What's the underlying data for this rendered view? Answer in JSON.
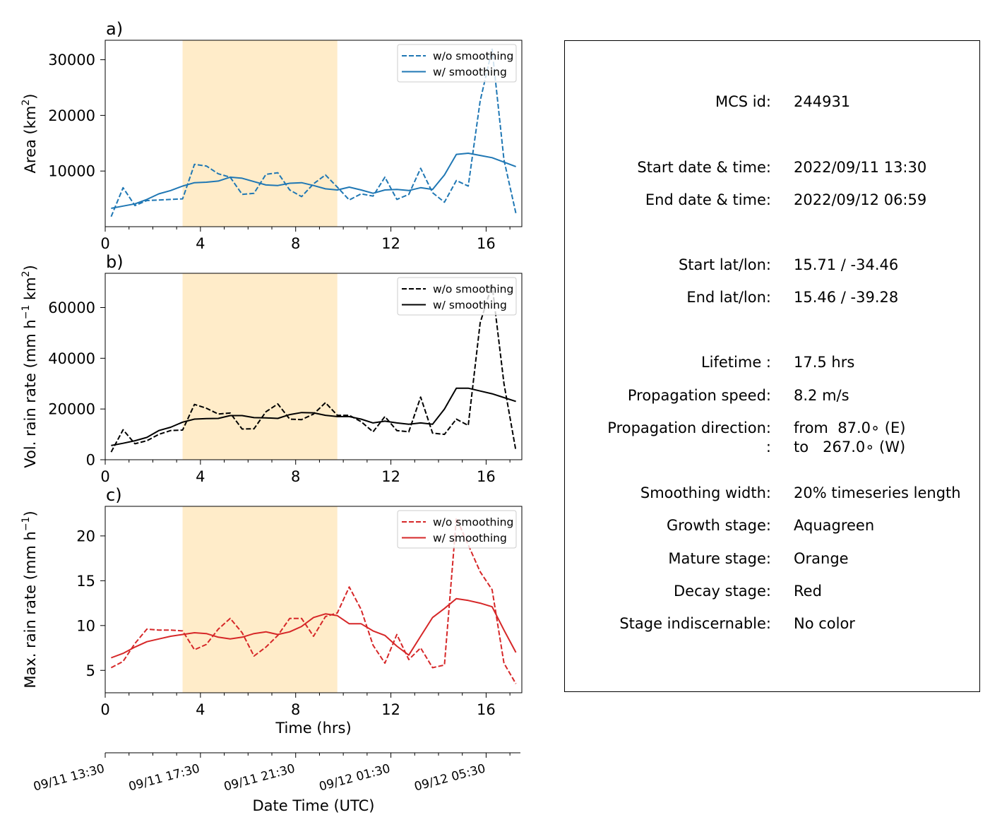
{
  "chart_data": [
    {
      "type": "line",
      "panel_label": "a)",
      "ylabel_main": "Area  (km",
      "ylabel_sup": "2",
      "ylabel_end": ")",
      "xlim": [
        0,
        17.5
      ],
      "ylim": [
        0,
        33500
      ],
      "yticks": [
        10000,
        20000,
        30000
      ],
      "xticks": [
        0,
        4,
        8,
        12,
        16
      ],
      "color": "#1f77b4",
      "shaded_span": [
        3.25,
        9.75
      ],
      "shade_color": "#ffecc9",
      "legend_placement": "top-right",
      "series": [
        {
          "name": "w/o smoothing",
          "style": "dashed",
          "x": [
            0.25,
            0.75,
            1.25,
            1.75,
            2.25,
            2.75,
            3.25,
            3.75,
            4.25,
            4.75,
            5.25,
            5.75,
            6.25,
            6.75,
            7.25,
            7.75,
            8.25,
            8.75,
            9.25,
            9.75,
            10.25,
            10.75,
            11.25,
            11.75,
            12.25,
            12.75,
            13.25,
            13.75,
            14.25,
            14.75,
            15.25,
            15.75,
            16.25,
            16.75,
            17.25
          ],
          "y": [
            1800,
            7000,
            3800,
            4700,
            4800,
            4900,
            5000,
            11200,
            10900,
            9500,
            8900,
            5800,
            6000,
            9400,
            9700,
            6600,
            5400,
            7700,
            9300,
            7100,
            4800,
            5900,
            5500,
            8900,
            4900,
            5800,
            10500,
            6100,
            4400,
            8300,
            7300,
            22600,
            31900,
            12000,
            2400
          ]
        },
        {
          "name": "w/ smoothing",
          "style": "solid",
          "x": [
            0.25,
            0.75,
            1.25,
            1.75,
            2.25,
            2.75,
            3.25,
            3.75,
            4.25,
            4.75,
            5.25,
            5.75,
            6.25,
            6.75,
            7.25,
            7.75,
            8.25,
            8.75,
            9.25,
            9.75,
            10.25,
            10.75,
            11.25,
            11.75,
            12.25,
            12.75,
            13.25,
            13.75,
            14.25,
            14.75,
            15.25,
            15.75,
            16.25,
            16.75,
            17.25
          ],
          "y": [
            3300,
            3700,
            4100,
            4900,
            5900,
            6500,
            7300,
            7900,
            8000,
            8200,
            8900,
            8700,
            8100,
            7500,
            7400,
            7800,
            7900,
            7400,
            6800,
            6600,
            7100,
            6600,
            6000,
            6600,
            6700,
            6500,
            7000,
            6700,
            9300,
            13000,
            13200,
            12800,
            12400,
            11600,
            10800
          ]
        }
      ]
    },
    {
      "type": "line",
      "panel_label": "b)",
      "ylabel_main": "Vol. rain rate (mm h",
      "ylabel_sup1": "−1",
      "ylabel_mid": " km",
      "ylabel_sup2": "2",
      "ylabel_end": ")",
      "xlim": [
        0,
        17.5
      ],
      "ylim": [
        0,
        73500
      ],
      "yticks": [
        0,
        20000,
        40000,
        60000
      ],
      "xticks": [
        0,
        4,
        8,
        12,
        16
      ],
      "color": "#000000",
      "shaded_span": [
        3.25,
        9.75
      ],
      "shade_color": "#ffecc9",
      "legend_placement": "top-right",
      "series": [
        {
          "name": "w/o smoothing",
          "style": "dashed",
          "x": [
            0.25,
            0.75,
            1.25,
            1.75,
            2.25,
            2.75,
            3.25,
            3.75,
            4.25,
            4.75,
            5.25,
            5.75,
            6.25,
            6.75,
            7.25,
            7.75,
            8.25,
            8.75,
            9.25,
            9.75,
            10.25,
            10.75,
            11.25,
            11.75,
            12.25,
            12.75,
            13.25,
            13.75,
            14.25,
            14.75,
            15.25,
            15.75,
            16.25,
            16.75,
            17.25
          ],
          "y": [
            3000,
            11800,
            6300,
            7500,
            10000,
            11500,
            11700,
            21800,
            20300,
            18000,
            18400,
            12100,
            12200,
            18900,
            22000,
            16000,
            15800,
            18000,
            22500,
            17500,
            17500,
            15000,
            11000,
            17000,
            11500,
            11000,
            24700,
            10500,
            10000,
            16000,
            13500,
            54000,
            69000,
            30000,
            3500
          ]
        },
        {
          "name": "w/ smoothing",
          "style": "solid",
          "x": [
            0.25,
            0.75,
            1.25,
            1.75,
            2.25,
            2.75,
            3.25,
            3.75,
            4.25,
            4.75,
            5.25,
            5.75,
            6.25,
            6.75,
            7.25,
            7.75,
            8.25,
            8.75,
            9.25,
            9.75,
            10.25,
            10.75,
            11.25,
            11.75,
            12.25,
            12.75,
            13.25,
            13.75,
            14.25,
            14.75,
            15.25,
            15.75,
            16.25,
            16.75,
            17.25
          ],
          "y": [
            5600,
            6500,
            7500,
            8800,
            11500,
            12800,
            14800,
            16000,
            16200,
            16300,
            17400,
            17400,
            16600,
            16500,
            16300,
            17800,
            18600,
            18500,
            17500,
            17000,
            17000,
            16000,
            14500,
            15200,
            14500,
            14000,
            14500,
            14000,
            20000,
            28200,
            28200,
            27100,
            26000,
            24500,
            23000
          ]
        }
      ]
    },
    {
      "type": "line",
      "panel_label": "c)",
      "ylabel_main": "Max. rain rate  (mm h",
      "ylabel_sup": "−1",
      "ylabel_end": ")",
      "xlabel": "Time (hrs)",
      "xlim": [
        0,
        17.5
      ],
      "ylim": [
        2.5,
        23.3
      ],
      "yticks": [
        5,
        10,
        15,
        20
      ],
      "xticks": [
        0,
        4,
        8,
        12,
        16
      ],
      "color": "#d62728",
      "shaded_span": [
        3.25,
        9.75
      ],
      "shade_color": "#ffecc9",
      "legend_placement": "top-right",
      "series": [
        {
          "name": "w/o smoothing",
          "style": "dashed",
          "x": [
            0.25,
            0.75,
            1.25,
            1.75,
            2.25,
            2.75,
            3.25,
            3.75,
            4.25,
            4.75,
            5.25,
            5.75,
            6.25,
            6.75,
            7.25,
            7.75,
            8.25,
            8.75,
            9.25,
            9.75,
            10.25,
            10.75,
            11.25,
            11.75,
            12.25,
            12.75,
            13.25,
            13.75,
            14.25,
            14.75,
            15.25,
            15.75,
            16.25,
            16.75,
            17.25
          ],
          "y": [
            5.3,
            6.0,
            8.0,
            9.6,
            9.5,
            9.5,
            9.4,
            7.3,
            7.9,
            9.6,
            10.8,
            9.2,
            6.6,
            7.6,
            8.9,
            10.8,
            10.8,
            8.8,
            11.0,
            11.4,
            14.3,
            11.8,
            7.8,
            5.8,
            9.0,
            6.2,
            7.5,
            5.3,
            5.6,
            22.0,
            19.0,
            16.0,
            14.0,
            5.8,
            3.5
          ]
        },
        {
          "name": "w/ smoothing",
          "style": "solid",
          "x": [
            0.25,
            0.75,
            1.25,
            1.75,
            2.25,
            2.75,
            3.25,
            3.75,
            4.25,
            4.75,
            5.25,
            5.75,
            6.25,
            6.75,
            7.25,
            7.75,
            8.25,
            8.75,
            9.25,
            9.75,
            10.25,
            10.75,
            11.25,
            11.75,
            12.25,
            12.75,
            13.25,
            13.75,
            14.25,
            14.75,
            15.25,
            15.75,
            16.25,
            16.75,
            17.25
          ],
          "y": [
            6.4,
            6.9,
            7.6,
            8.2,
            8.5,
            8.8,
            9.0,
            9.2,
            9.1,
            8.7,
            8.5,
            8.7,
            9.1,
            9.3,
            9.0,
            9.3,
            9.9,
            10.9,
            11.3,
            11.1,
            10.2,
            10.2,
            9.4,
            8.9,
            7.7,
            6.7,
            8.8,
            10.9,
            11.9,
            13.0,
            12.8,
            12.5,
            12.1,
            9.5,
            7.0
          ]
        }
      ]
    }
  ],
  "datetime_axis": {
    "label": "Date Time (UTC)",
    "tick_labels": [
      "09/11 13:30",
      "09/11 17:30",
      "09/11 21:30",
      "09/12 01:30",
      "09/12 05:30"
    ],
    "tick_hours": [
      0,
      4,
      8,
      12,
      16
    ]
  },
  "info": {
    "rows": [
      {
        "label": "MCS id:",
        "value": "244931"
      },
      {
        "label": "Start date & time:",
        "value": "2022/09/11 13:30"
      },
      {
        "label": "End date & time:",
        "value": "2022/09/12 06:59"
      },
      {
        "label": "Start lat/lon:",
        "value": "15.71 / -34.46"
      },
      {
        "label": "End lat/lon:",
        "value": "15.46 / -39.28"
      },
      {
        "label": "Lifetime :",
        "value": "17.5 hrs"
      },
      {
        "label": "Propagation speed:",
        "value": "8.2 m/s"
      },
      {
        "label": "Propagation direction:",
        "value": "from  87.0∘ (E)"
      },
      {
        "label": ":",
        "value": "to   267.0∘ (W)"
      },
      {
        "label": "Smoothing width:",
        "value": "20% timeseries length"
      },
      {
        "label": "Growth stage:",
        "value": "Aquagreen"
      },
      {
        "label": "Mature stage:",
        "value": "Orange"
      },
      {
        "label": "Decay stage:",
        "value": "Red"
      },
      {
        "label": "Stage indiscernable:",
        "value": "No color"
      }
    ]
  }
}
